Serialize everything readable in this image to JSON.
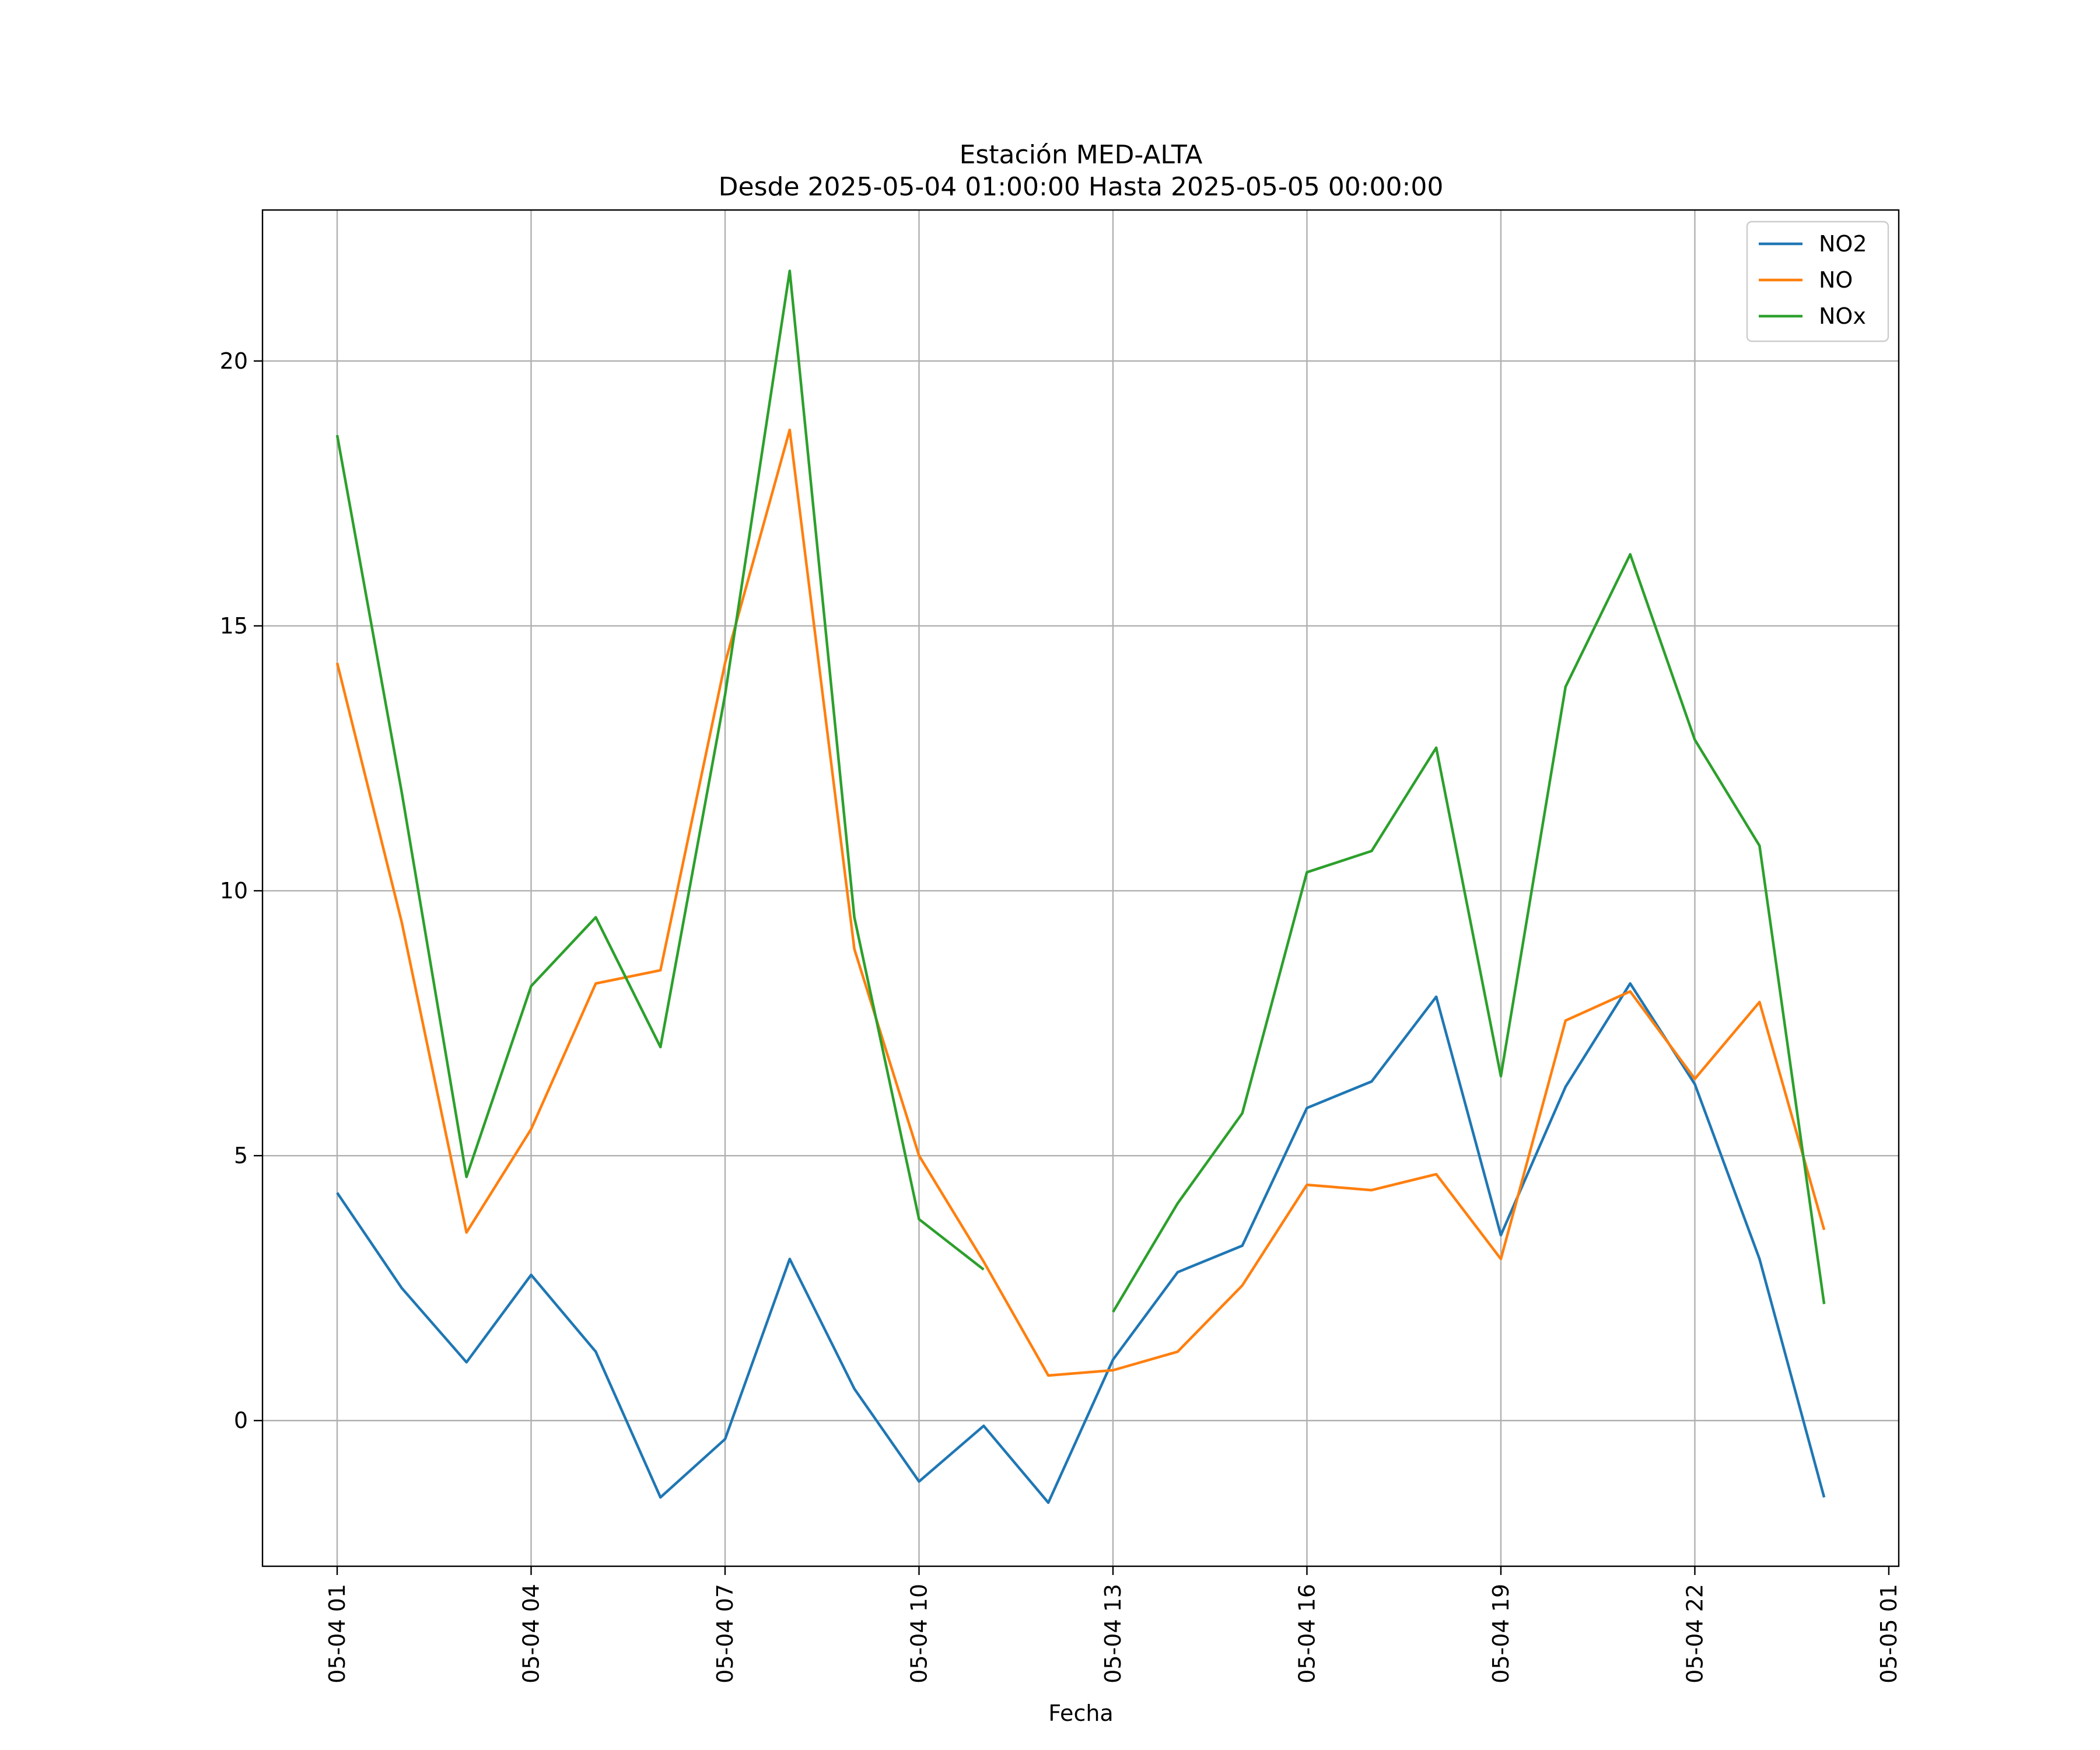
{
  "chart_data": {
    "type": "line",
    "title": "Estación MED-ALTA",
    "subtitle": "Desde 2025-05-04 01:00:00 Hasta 2025-05-05 00:00:00",
    "xlabel": "Fecha",
    "ylabel": "",
    "x": [
      "05-04 01",
      "05-04 02",
      "05-04 03",
      "05-04 04",
      "05-04 05",
      "05-04 06",
      "05-04 07",
      "05-04 08",
      "05-04 09",
      "05-04 10",
      "05-04 11",
      "05-04 12",
      "05-04 13",
      "05-04 14",
      "05-04 15",
      "05-04 16",
      "05-04 17",
      "05-04 18",
      "05-04 19",
      "05-04 20",
      "05-04 21",
      "05-04 22",
      "05-04 23",
      "05-05 00"
    ],
    "x_ticks": [
      "05-04 01",
      "05-04 04",
      "05-04 07",
      "05-04 10",
      "05-04 13",
      "05-04 16",
      "05-04 19",
      "05-04 22",
      "05-05 01"
    ],
    "y_ticks": [
      "0",
      "5",
      "10",
      "15",
      "20"
    ],
    "ylim": [
      -2.75,
      22.85
    ],
    "grid": true,
    "legend_position": "top-right",
    "series": [
      {
        "name": "NO2",
        "color": "#1f77b4",
        "values": [
          4.3,
          2.5,
          1.1,
          2.75,
          1.3,
          -1.45,
          -0.35,
          3.05,
          0.6,
          -1.15,
          -0.1,
          -1.55,
          1.15,
          2.8,
          3.3,
          5.9,
          6.4,
          8.0,
          3.5,
          6.3,
          8.25,
          6.35,
          3.05,
          -1.45
        ]
      },
      {
        "name": "NO",
        "color": "#ff7f0e",
        "values": [
          14.3,
          9.4,
          3.55,
          5.5,
          8.25,
          8.5,
          14.3,
          18.7,
          8.9,
          5.0,
          3.0,
          0.85,
          0.95,
          1.3,
          2.55,
          4.45,
          4.35,
          4.65,
          3.05,
          7.55,
          8.1,
          6.45,
          7.9,
          3.6
        ]
      },
      {
        "name": "NOx",
        "color": "#2ca02c",
        "values": [
          18.6,
          11.85,
          4.6,
          8.2,
          9.5,
          7.05,
          13.7,
          21.7,
          9.5,
          3.8,
          2.85,
          null,
          2.05,
          4.1,
          5.8,
          10.35,
          10.75,
          12.7,
          6.5,
          13.85,
          16.35,
          12.85,
          10.85,
          2.2
        ]
      }
    ]
  }
}
